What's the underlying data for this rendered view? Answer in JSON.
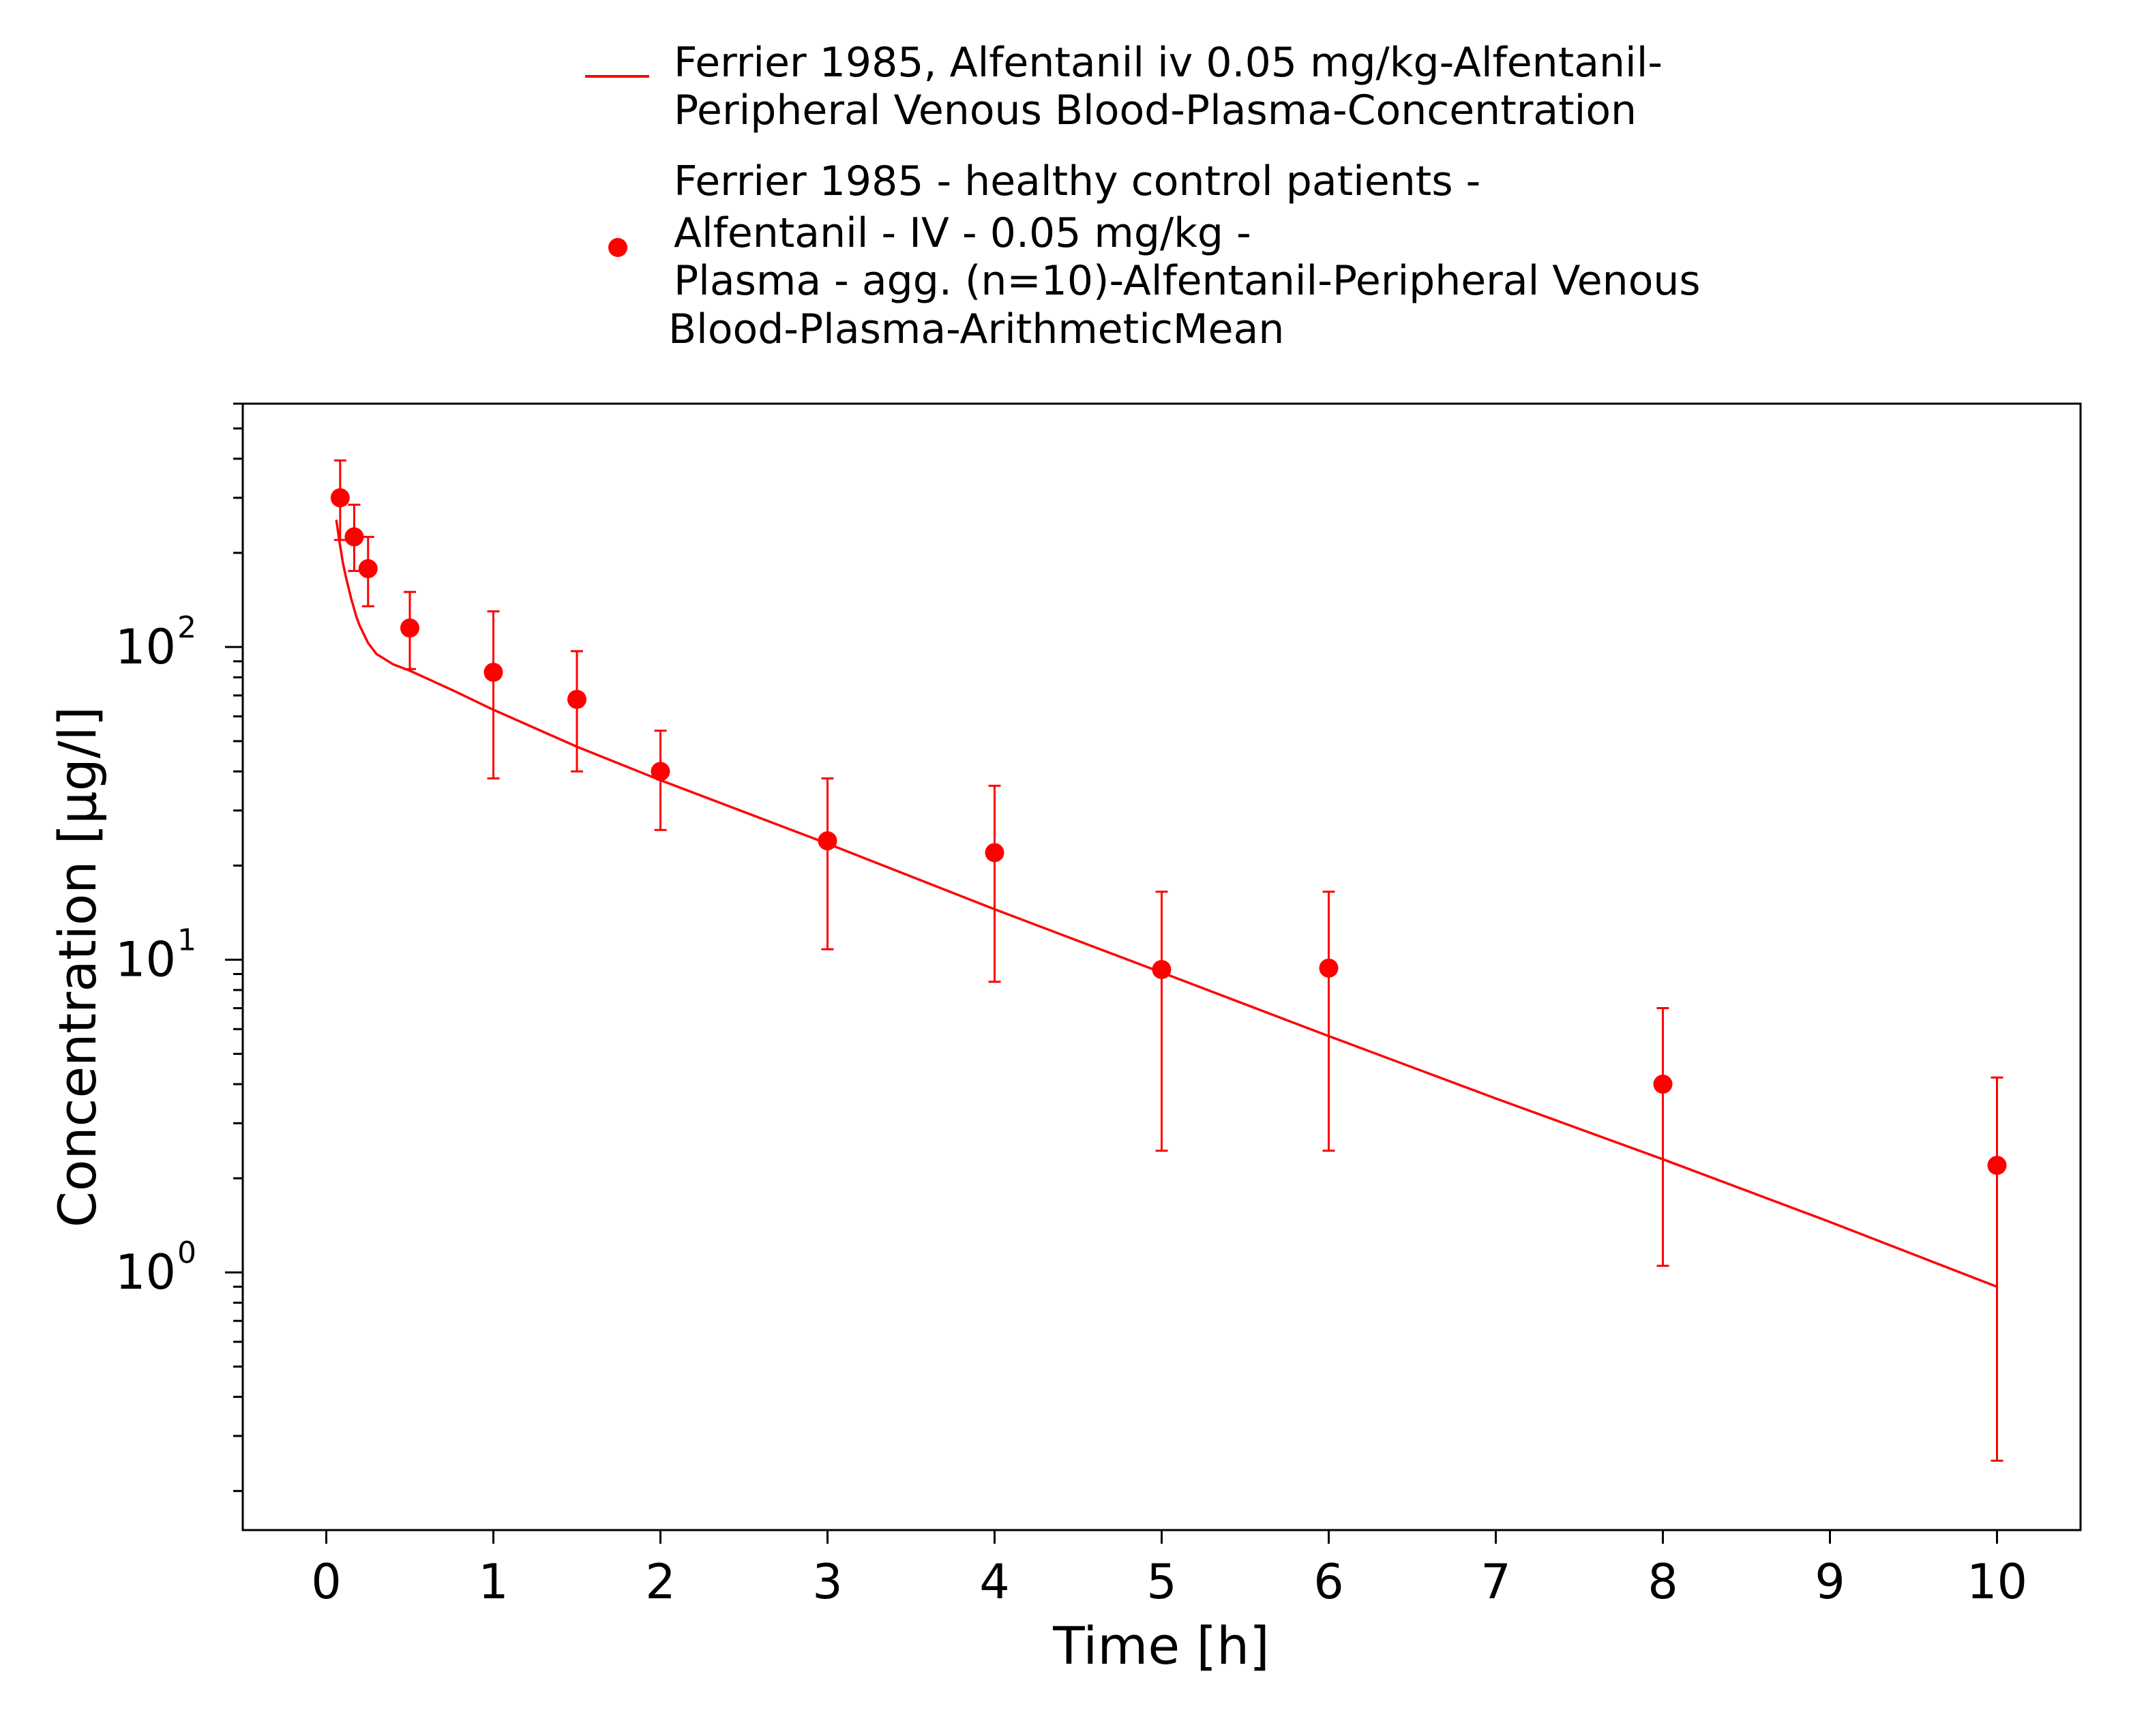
{
  "chart_data": {
    "type": "scatter",
    "xlabel": "Time [h]",
    "ylabel": "Concentration [µg/l]",
    "x_ticks": [
      "0",
      "1",
      "2",
      "3",
      "4",
      "5",
      "6",
      "7",
      "8",
      "9",
      "10"
    ],
    "y_ticks": [
      {
        "base": "10",
        "exp": "0",
        "value": 1
      },
      {
        "base": "10",
        "exp": "1",
        "value": 10
      },
      {
        "base": "10",
        "exp": "2",
        "value": 100
      }
    ],
    "xlim": [
      -0.5,
      10.5
    ],
    "ylim": [
      0.15,
      600
    ],
    "y_scale": "log",
    "grid": false,
    "legend_placement": "top-center",
    "color": "#ff0000",
    "series": [
      {
        "name_lines": [
          "Ferrier 1985, Alfentanil iv 0.05 mg/kg-Alfentanil-",
          "Peripheral Venous Blood-Plasma-Concentration"
        ],
        "kind": "line",
        "x": [
          0.06,
          0.08,
          0.1,
          0.12,
          0.15,
          0.18,
          0.2,
          0.25,
          0.3,
          0.4,
          0.5,
          0.75,
          1.0,
          1.5,
          2.0,
          3.0,
          4.0,
          5.0,
          6.0,
          7.0,
          8.0,
          9.0,
          10.0
        ],
        "y": [
          255,
          215,
          185,
          165,
          142,
          125,
          117,
          103,
          95,
          88,
          84,
          73,
          63,
          48,
          37.5,
          23.5,
          14.5,
          9.1,
          5.7,
          3.6,
          2.3,
          1.45,
          0.9
        ]
      },
      {
        "name_lines": [
          "Ferrier 1985 - healthy control patients -",
          "Alfentanil - IV - 0.05 mg/kg -",
          "Plasma - agg. (n=10)-Alfentanil-Peripheral Venous",
          "Blood-Plasma-ArithmeticMean"
        ],
        "kind": "markers",
        "x": [
          0.083,
          0.167,
          0.25,
          0.5,
          1.0,
          1.5,
          2.0,
          3.0,
          4.0,
          5.0,
          6.0,
          8.0,
          10.0
        ],
        "y": [
          300,
          225,
          178,
          115,
          83,
          68,
          40,
          24,
          22,
          9.3,
          9.4,
          4.0,
          2.2
        ],
        "y_lower": [
          220,
          175,
          135,
          85,
          38,
          40,
          26,
          10.8,
          8.5,
          2.45,
          2.45,
          1.05,
          0.25
        ],
        "y_upper": [
          395,
          285,
          225,
          150,
          130,
          97,
          54,
          38,
          36,
          16.5,
          16.5,
          7.0,
          4.2
        ]
      }
    ]
  }
}
